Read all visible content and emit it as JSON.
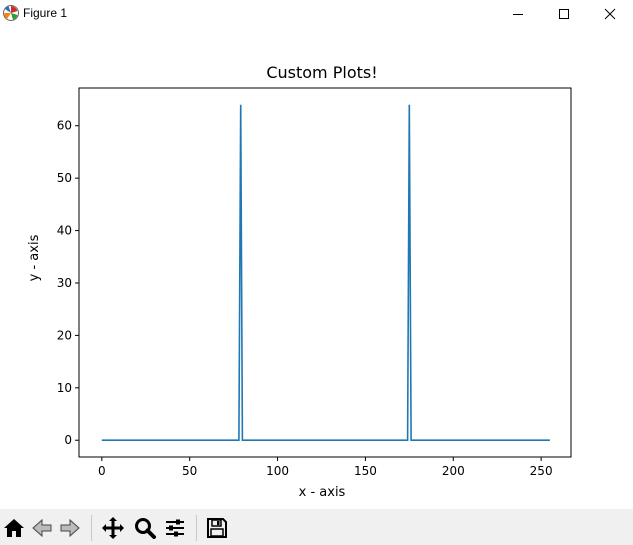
{
  "window": {
    "title": "Figure 1",
    "controls": [
      "minimize",
      "maximize",
      "close"
    ]
  },
  "toolbar": {
    "buttons": [
      "home-icon",
      "back-icon",
      "forward-icon",
      "pan-icon",
      "zoom-icon",
      "configure-subplots-icon",
      "save-icon"
    ]
  },
  "chart_data": {
    "type": "line",
    "title": "Custom Plots!",
    "xlabel": "x - axis",
    "ylabel": "y - axis",
    "xlim": [
      -13,
      267
    ],
    "ylim": [
      -3.2,
      67.2
    ],
    "xticks": [
      0,
      50,
      100,
      150,
      200,
      250
    ],
    "yticks": [
      0,
      10,
      20,
      30,
      40,
      50,
      60
    ],
    "grid": false,
    "color": "#1f77b4",
    "series": [
      {
        "x": [
          0,
          78,
          79,
          80,
          174,
          175,
          176,
          255
        ],
        "y": [
          0,
          0,
          64,
          0,
          0,
          64,
          0,
          0
        ]
      }
    ]
  }
}
